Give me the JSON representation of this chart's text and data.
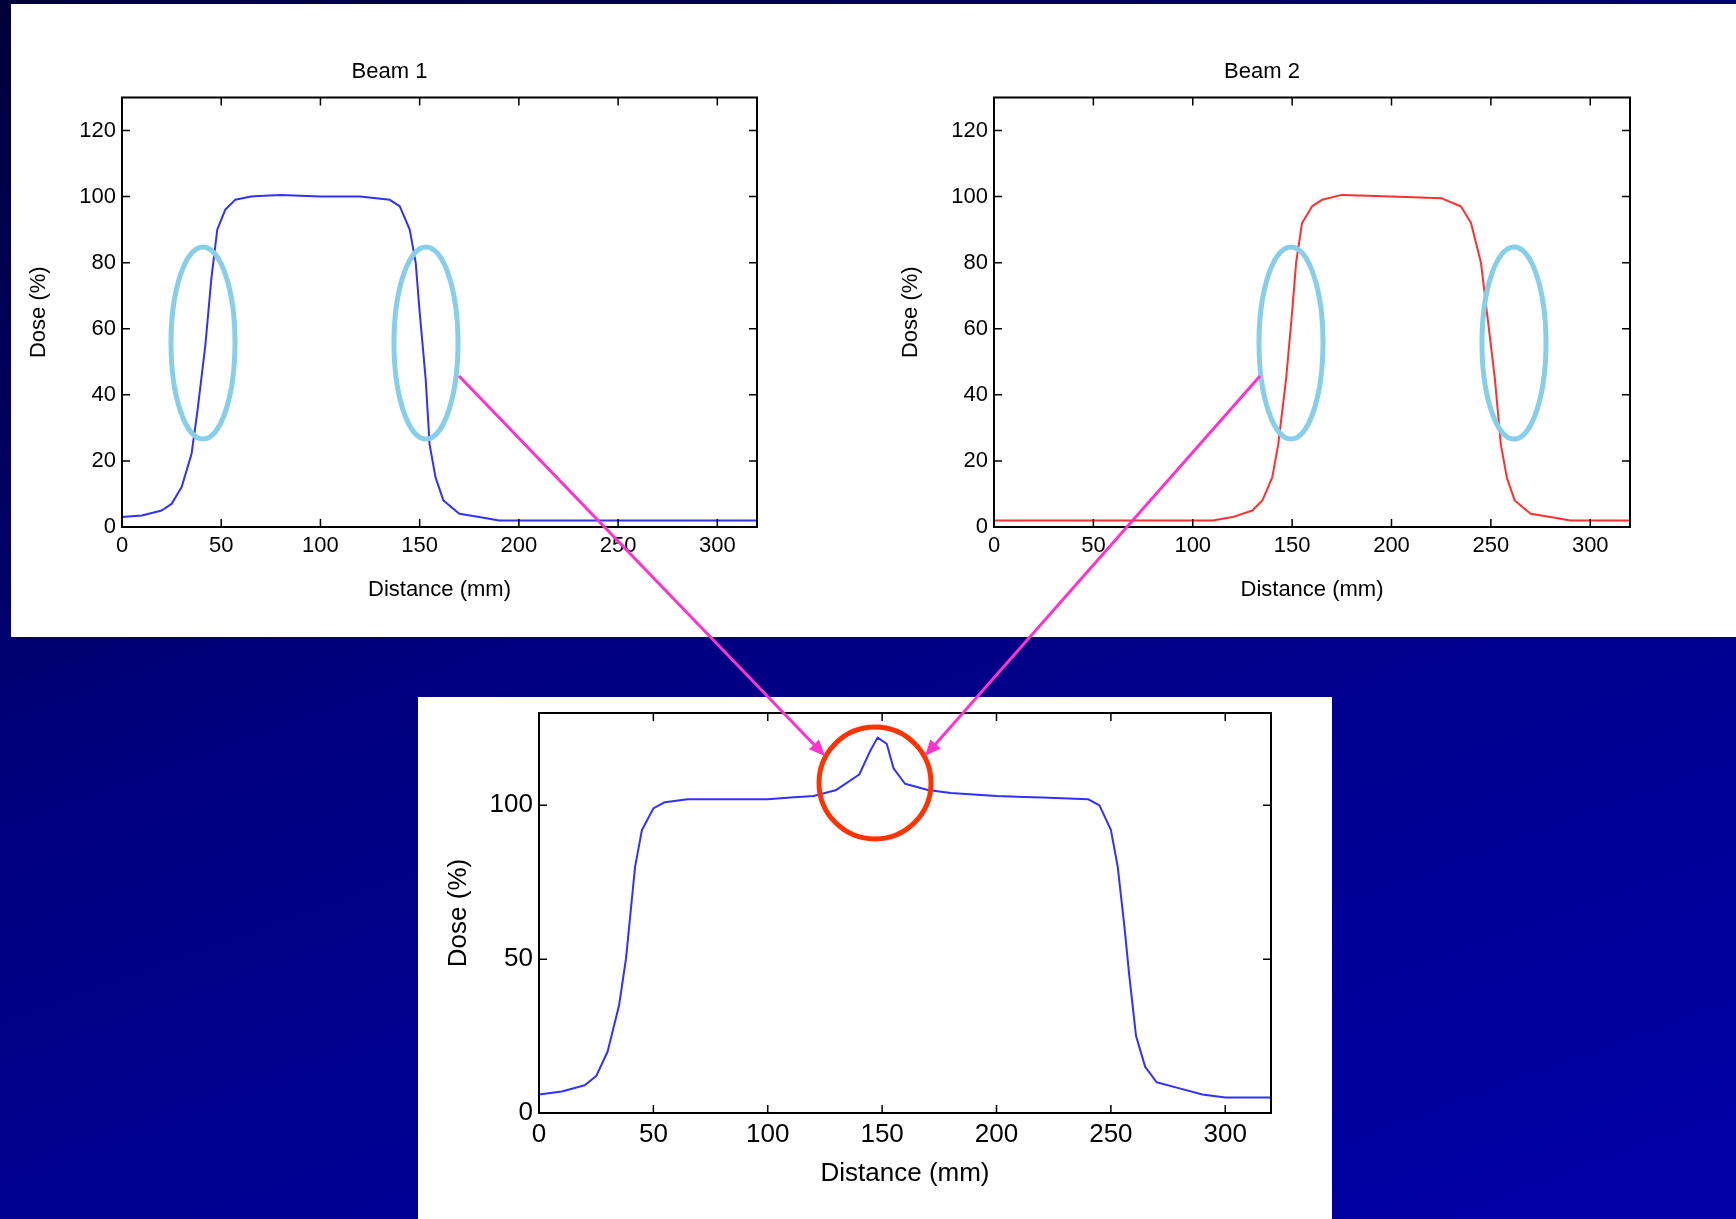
{
  "chart_data": [
    {
      "type": "line",
      "title": "Beam 1",
      "xlabel": "Distance (mm)",
      "ylabel": "Dose (%)",
      "xlim": [
        0,
        320
      ],
      "xticks": [
        0,
        50,
        100,
        150,
        200,
        250,
        300
      ],
      "ylim": [
        0,
        130
      ],
      "yticks": [
        0,
        20,
        40,
        60,
        80,
        100,
        120
      ],
      "color": "#3030ff",
      "x": [
        0,
        10,
        20,
        25,
        30,
        35,
        38,
        42,
        45,
        48,
        52,
        57,
        65,
        80,
        100,
        120,
        135,
        140,
        145,
        148,
        150,
        153,
        155,
        158,
        162,
        170,
        180,
        190,
        320
      ],
      "values": [
        3,
        3.5,
        5,
        7,
        12,
        22,
        35,
        55,
        75,
        90,
        96,
        99,
        100,
        100.5,
        100,
        100,
        99,
        97,
        90,
        80,
        65,
        45,
        25,
        15,
        8,
        4,
        3,
        2,
        2
      ]
    },
    {
      "type": "line",
      "title": "Beam 2",
      "xlabel": "Distance (mm)",
      "ylabel": "Dose (%)",
      "xlim": [
        0,
        320
      ],
      "xticks": [
        0,
        50,
        100,
        150,
        200,
        250,
        300
      ],
      "ylim": [
        0,
        130
      ],
      "yticks": [
        0,
        20,
        40,
        60,
        80,
        100,
        120
      ],
      "color": "#ff3030",
      "x": [
        0,
        110,
        120,
        130,
        135,
        140,
        143,
        147,
        150,
        152,
        155,
        160,
        165,
        175,
        200,
        225,
        235,
        240,
        245,
        248,
        252,
        255,
        258,
        262,
        270,
        280,
        290,
        320
      ],
      "values": [
        2,
        2,
        3,
        5,
        8,
        15,
        25,
        45,
        65,
        80,
        92,
        97,
        99,
        100.5,
        100,
        99.5,
        97,
        92,
        80,
        65,
        45,
        25,
        15,
        8,
        4,
        3,
        2,
        2
      ]
    },
    {
      "type": "line",
      "xlabel": "Distance (mm)",
      "ylabel": "Dose (%)",
      "xlim": [
        0,
        320
      ],
      "xticks": [
        0,
        50,
        100,
        150,
        200,
        250,
        300
      ],
      "ylim": [
        0,
        130
      ],
      "yticks": [
        0,
        50,
        100
      ],
      "color": "#3030ff",
      "x": [
        0,
        10,
        20,
        25,
        30,
        35,
        38,
        40,
        42,
        45,
        50,
        55,
        65,
        100,
        110,
        120,
        130,
        140,
        145,
        148,
        152,
        155,
        160,
        170,
        180,
        200,
        220,
        240,
        245,
        250,
        253,
        256,
        258,
        261,
        265,
        270,
        280,
        290,
        300,
        320
      ],
      "values": [
        6,
        7,
        9,
        12,
        20,
        35,
        50,
        65,
        80,
        92,
        99,
        101,
        102,
        102,
        102.5,
        103,
        105,
        110,
        118,
        122,
        120,
        112,
        107,
        105,
        104,
        103,
        102.5,
        102,
        100,
        92,
        80,
        60,
        45,
        25,
        15,
        10,
        8,
        6,
        5,
        5
      ]
    }
  ]
}
